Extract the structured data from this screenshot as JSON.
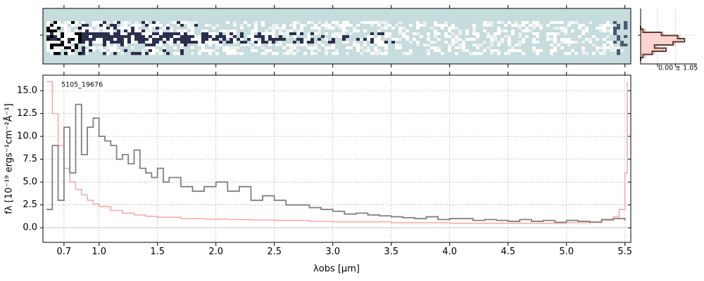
{
  "chart_data": [
    {
      "type": "heatmap",
      "panel": "2d-spectrum",
      "colormap": [
        "#ffffff",
        "#c8dcdb",
        "#1b1f3a"
      ],
      "background_color": "#c7dcdc"
    },
    {
      "type": "line",
      "panel": "cross-dispersion-profile",
      "annotation": "0.00 ± 1.05",
      "series": [
        {
          "role": "profile",
          "color": "#5a3b36",
          "x": [
            0,
            0.05,
            0.45,
            0.8,
            0.95,
            0.7,
            0.3,
            0.55,
            0.25,
            0.05,
            0
          ],
          "y": [
            0,
            1,
            2,
            3,
            4,
            5,
            6,
            7,
            8,
            9,
            10
          ]
        },
        {
          "role": "model",
          "color": "#f4a9a4",
          "x": [
            0,
            0.1,
            0.5,
            0.85,
            0.9,
            0.75,
            0.35,
            0.5,
            0.3,
            0.1,
            0
          ],
          "y": [
            0,
            1,
            2,
            3,
            4,
            5,
            6,
            7,
            8,
            9,
            10
          ]
        }
      ]
    },
    {
      "type": "line",
      "panel": "1d-spectrum",
      "annotation": "5105_19676",
      "xlabel": "λobs [μm]",
      "ylabel": "fλ [10⁻¹⁹ ergs⁻¹cm⁻²Å⁻¹]",
      "xlim": [
        0.52,
        5.55
      ],
      "ylim": [
        -1.6,
        16.7
      ],
      "xticks": [
        0.7,
        1.0,
        1.5,
        2.0,
        2.5,
        3.0,
        3.5,
        4.0,
        4.5,
        5.0,
        5.5
      ],
      "xtick_labels": [
        "0.7",
        "1.0",
        "1.5",
        "2.0",
        "2.5",
        "3.0",
        "3.5",
        "4.0",
        "4.5",
        "5.0",
        "5.5"
      ],
      "yticks": [
        0.0,
        2.5,
        5.0,
        7.5,
        10.0,
        12.5,
        15.0
      ],
      "ytick_labels": [
        "0.0",
        "2.5",
        "5.0",
        "7.5",
        "10.0",
        "12.5",
        "15.0"
      ],
      "grid": true,
      "series": [
        {
          "role": "flux",
          "color": "#808080",
          "x": [
            0.55,
            0.6,
            0.65,
            0.7,
            0.75,
            0.8,
            0.85,
            0.9,
            0.95,
            1.0,
            1.05,
            1.1,
            1.15,
            1.2,
            1.25,
            1.3,
            1.35,
            1.4,
            1.45,
            1.5,
            1.55,
            1.6,
            1.7,
            1.8,
            1.9,
            2.0,
            2.1,
            2.2,
            2.3,
            2.4,
            2.5,
            2.6,
            2.7,
            2.8,
            2.9,
            2.95,
            3.0,
            3.1,
            3.2,
            3.3,
            3.4,
            3.5,
            3.6,
            3.7,
            3.8,
            3.9,
            4.0,
            4.1,
            4.2,
            4.3,
            4.4,
            4.5,
            4.6,
            4.7,
            4.8,
            4.9,
            5.0,
            5.1,
            5.2,
            5.3,
            5.4,
            5.5
          ],
          "y": [
            2.0,
            9.0,
            3.0,
            11.0,
            6.0,
            13.5,
            8.0,
            11.0,
            12.0,
            10.0,
            9.5,
            9.0,
            7.5,
            8.0,
            7.0,
            8.5,
            6.5,
            6.0,
            5.5,
            6.5,
            5.0,
            5.5,
            4.5,
            4.0,
            4.5,
            5.0,
            4.0,
            4.5,
            3.0,
            3.5,
            3.0,
            2.5,
            2.5,
            2.2,
            2.0,
            2.0,
            1.8,
            1.5,
            1.6,
            1.4,
            1.3,
            1.2,
            1.1,
            1.0,
            1.2,
            0.9,
            1.0,
            1.0,
            0.8,
            0.9,
            0.8,
            0.7,
            0.9,
            0.7,
            0.8,
            0.6,
            0.8,
            0.7,
            0.6,
            0.9,
            1.0,
            0.8
          ]
        },
        {
          "role": "error",
          "color": "#f4a9a4",
          "x": [
            0.55,
            0.6,
            0.65,
            0.7,
            0.75,
            0.8,
            0.85,
            0.9,
            0.95,
            1.0,
            1.1,
            1.2,
            1.3,
            1.4,
            1.5,
            1.7,
            1.9,
            2.1,
            2.3,
            2.5,
            2.8,
            3.0,
            3.5,
            4.0,
            4.5,
            5.0,
            5.2,
            5.3,
            5.4,
            5.45,
            5.5,
            5.52
          ],
          "y": [
            16.0,
            12.5,
            9.0,
            6.5,
            5.0,
            4.2,
            3.6,
            3.0,
            2.6,
            2.3,
            1.9,
            1.6,
            1.4,
            1.25,
            1.15,
            1.0,
            0.95,
            0.9,
            0.85,
            0.8,
            0.7,
            0.65,
            0.55,
            0.5,
            0.5,
            0.55,
            0.65,
            0.8,
            1.2,
            2.0,
            6.0,
            16.0
          ]
        }
      ]
    }
  ]
}
